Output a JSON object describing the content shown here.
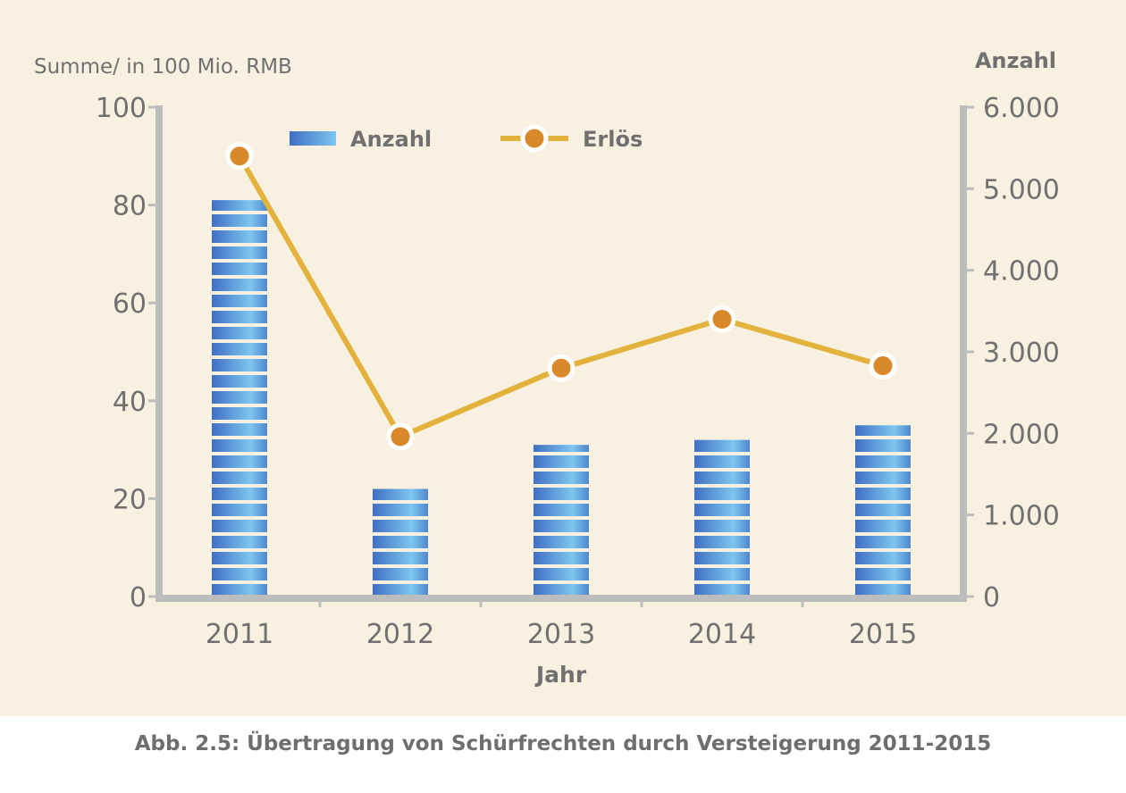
{
  "caption": "Abb. 2.5: Übertragung von Schürfrechten durch Versteigerung 2011-2015",
  "colors": {
    "background": "#f8f1e2",
    "axis": "#bdbdbd",
    "text": "#707070",
    "bar_dark": "#3f6fc4",
    "bar_light": "#7ec6ef",
    "line": "#e3b23c",
    "marker": "#d9892a"
  },
  "chart_data": {
    "type": "bar",
    "title": "",
    "categories": [
      "2011",
      "2012",
      "2013",
      "2014",
      "2015"
    ],
    "xlabel": "Jahr",
    "ylabel_left": "Summe/ in 100 Mio. RMB",
    "ylabel_right": "Anzahl",
    "ylim_left": [
      0,
      100
    ],
    "ylim_right": [
      0,
      6000
    ],
    "yticks_left": [
      "0",
      "20",
      "40",
      "60",
      "80",
      "100"
    ],
    "yticks_right": [
      "0",
      "1.000",
      "2.000",
      "3.000",
      "4.000",
      "5.000",
      "6.000"
    ],
    "grid": false,
    "legend_position": "top",
    "series": [
      {
        "name": "Anzahl",
        "type": "bar",
        "axis": "left",
        "values": [
          81,
          22,
          31,
          32,
          35
        ]
      },
      {
        "name": "Erlös",
        "type": "line",
        "axis": "right",
        "values": [
          5400,
          1960,
          2800,
          3400,
          2830
        ]
      }
    ]
  }
}
